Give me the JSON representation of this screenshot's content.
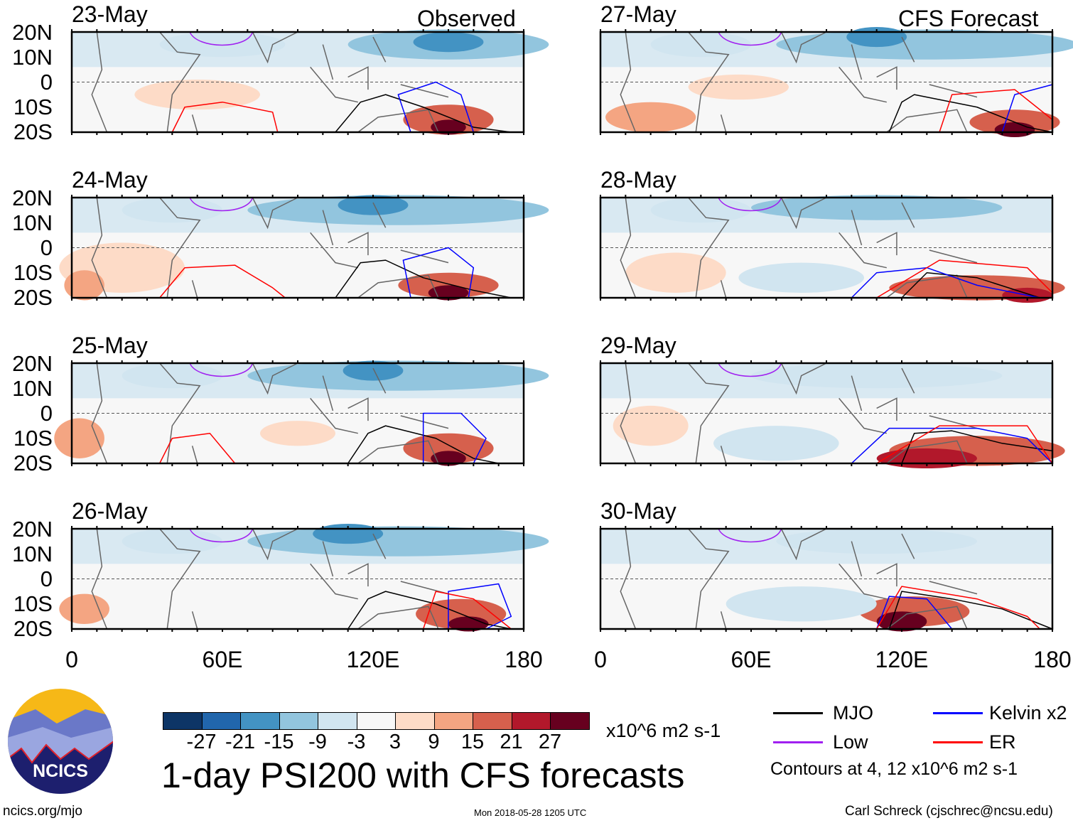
{
  "title": "1-day PSI200 with CFS forecasts",
  "units": "x10^6 m2 s-1",
  "logo_text": "NCICS",
  "footer": {
    "url": "ncics.org/mjo",
    "timestamp": "Mon 2018-05-28 1205 UTC",
    "author": "Carl Schreck (cjschrec@ncsu.edu)"
  },
  "column_labels": {
    "observed": "Observed",
    "forecast": "CFS Forecast"
  },
  "lat_labels": [
    "20N",
    "10N",
    "0",
    "10S",
    "20S"
  ],
  "lon_labels": [
    "0",
    "60E",
    "120E",
    "180"
  ],
  "colorbar": {
    "labels": [
      "-27",
      "-21",
      "-15",
      "-9",
      "-3",
      "3",
      "9",
      "15",
      "21",
      "27"
    ],
    "colors": [
      "#0d3566",
      "#2166ac",
      "#4393c3",
      "#92c5de",
      "#d1e5f0",
      "#f7f7f7",
      "#fddbc7",
      "#f4a582",
      "#d6604d",
      "#b2182b",
      "#67001f"
    ]
  },
  "legend": {
    "items": [
      {
        "label": "MJO",
        "color": "#000000"
      },
      {
        "label": "Kelvin x2",
        "color": "#0000ff"
      },
      {
        "label": "Low",
        "color": "#a020f0"
      },
      {
        "label": "ER",
        "color": "#ff0000"
      }
    ],
    "note": "Contours at 4, 12 x10^6 m2 s-1"
  },
  "chart_data": {
    "type": "heatmap",
    "variable": "PSI200 anomaly",
    "lon_range": [
      0,
      180
    ],
    "lat_range": [
      -20,
      20
    ],
    "panels": [
      {
        "date": "23-May",
        "source": "Observed",
        "fill": [
          [
            150,
            15,
            40,
            6,
            -15
          ],
          [
            150,
            16,
            14,
            4,
            -21
          ],
          [
            60,
            15,
            25,
            5,
            -9
          ],
          [
            150,
            -15,
            18,
            6,
            15
          ],
          [
            150,
            -18,
            7,
            3,
            27
          ],
          [
            50,
            -5,
            25,
            6,
            3
          ]
        ],
        "contours": [
          [
            "#000",
            [
              [
                105,
                -20
              ],
              [
                115,
                -8
              ],
              [
                125,
                -5
              ],
              [
                140,
                -10
              ],
              [
                160,
                -18
              ],
              [
                175,
                -20
              ]
            ]
          ],
          [
            "#00f",
            [
              [
                135,
                -20
              ],
              [
                130,
                -5
              ],
              [
                145,
                0
              ],
              [
                155,
                -5
              ],
              [
                160,
                -20
              ]
            ]
          ],
          [
            "#f00",
            [
              [
                40,
                -20
              ],
              [
                45,
                -10
              ],
              [
                60,
                -8
              ],
              [
                80,
                -12
              ],
              [
                82,
                -20
              ]
            ]
          ]
        ]
      },
      {
        "date": "24-May",
        "source": "Observed",
        "fill": [
          [
            130,
            15,
            60,
            6,
            -15
          ],
          [
            120,
            17,
            14,
            4,
            -21
          ],
          [
            40,
            15,
            20,
            5,
            -9
          ],
          [
            150,
            -15,
            20,
            5,
            15
          ],
          [
            150,
            -18,
            8,
            3,
            27
          ],
          [
            20,
            -8,
            25,
            10,
            3
          ],
          [
            5,
            -15,
            8,
            6,
            9
          ]
        ],
        "contours": [
          [
            "#000",
            [
              [
                105,
                -20
              ],
              [
                115,
                -6
              ],
              [
                125,
                -5
              ],
              [
                140,
                -12
              ],
              [
                160,
                -17
              ],
              [
                175,
                -20
              ]
            ]
          ],
          [
            "#00f",
            [
              [
                135,
                -20
              ],
              [
                132,
                -5
              ],
              [
                150,
                0
              ],
              [
                160,
                -8
              ],
              [
                158,
                -20
              ]
            ]
          ],
          [
            "#f00",
            [
              [
                35,
                -20
              ],
              [
                45,
                -8
              ],
              [
                65,
                -7
              ],
              [
                80,
                -16
              ],
              [
                85,
                -20
              ]
            ]
          ]
        ]
      },
      {
        "date": "25-May",
        "source": "Observed",
        "fill": [
          [
            130,
            15,
            60,
            6,
            -15
          ],
          [
            120,
            17,
            12,
            4,
            -21
          ],
          [
            40,
            15,
            20,
            5,
            -9
          ],
          [
            150,
            -14,
            18,
            6,
            15
          ],
          [
            150,
            -18,
            7,
            3,
            27
          ],
          [
            3,
            -10,
            10,
            8,
            9
          ],
          [
            90,
            -8,
            15,
            5,
            3
          ]
        ],
        "contours": [
          [
            "#000",
            [
              [
                110,
                -20
              ],
              [
                118,
                -8
              ],
              [
                125,
                -5
              ],
              [
                145,
                -10
              ],
              [
                160,
                -18
              ],
              [
                170,
                -20
              ]
            ]
          ],
          [
            "#00f",
            [
              [
                140,
                -20
              ],
              [
                140,
                0
              ],
              [
                155,
                0
              ],
              [
                165,
                -10
              ],
              [
                160,
                -20
              ]
            ]
          ],
          [
            "#f00",
            [
              [
                35,
                -20
              ],
              [
                40,
                -10
              ],
              [
                55,
                -8
              ],
              [
                65,
                -20
              ]
            ]
          ]
        ]
      },
      {
        "date": "26-May",
        "source": "Observed",
        "fill": [
          [
            130,
            15,
            60,
            6,
            -15
          ],
          [
            110,
            18,
            14,
            4,
            -21
          ],
          [
            40,
            15,
            20,
            5,
            -9
          ],
          [
            155,
            -14,
            18,
            6,
            15
          ],
          [
            158,
            -18,
            8,
            3,
            27
          ],
          [
            5,
            -12,
            10,
            6,
            9
          ]
        ],
        "contours": [
          [
            "#000",
            [
              [
                110,
                -20
              ],
              [
                118,
                -8
              ],
              [
                125,
                -5
              ],
              [
                145,
                -10
              ],
              [
                165,
                -18
              ],
              [
                175,
                -20
              ]
            ]
          ],
          [
            "#00f",
            [
              [
                150,
                -20
              ],
              [
                150,
                -5
              ],
              [
                170,
                -2
              ],
              [
                175,
                -15
              ],
              [
                165,
                -20
              ]
            ]
          ],
          [
            "#f00",
            [
              [
                140,
                -20
              ],
              [
                145,
                -5
              ],
              [
                160,
                -8
              ],
              [
                175,
                -20
              ]
            ]
          ]
        ]
      },
      {
        "date": "27-May",
        "source": "CFS Forecast",
        "fill": [
          [
            130,
            15,
            60,
            6,
            -15
          ],
          [
            110,
            18,
            12,
            4,
            -21
          ],
          [
            40,
            15,
            20,
            5,
            -9
          ],
          [
            165,
            -16,
            18,
            5,
            15
          ],
          [
            165,
            -19,
            8,
            3,
            27
          ],
          [
            20,
            -14,
            18,
            6,
            9
          ],
          [
            55,
            -2,
            20,
            5,
            3
          ]
        ],
        "contours": [
          [
            "#000",
            [
              [
                115,
                -20
              ],
              [
                120,
                -8
              ],
              [
                125,
                -5
              ],
              [
                150,
                -10
              ],
              [
                170,
                -18
              ],
              [
                180,
                -20
              ]
            ]
          ],
          [
            "#00f",
            [
              [
                160,
                -20
              ],
              [
                165,
                -5
              ],
              [
                180,
                -1
              ]
            ]
          ],
          [
            "#f00",
            [
              [
                135,
                -20
              ],
              [
                140,
                -5
              ],
              [
                165,
                -3
              ],
              [
                180,
                -15
              ]
            ]
          ]
        ]
      },
      {
        "date": "28-May",
        "source": "CFS Forecast",
        "fill": [
          [
            110,
            16,
            50,
            5,
            -15
          ],
          [
            40,
            15,
            20,
            5,
            -9
          ],
          [
            150,
            -16,
            35,
            5,
            15
          ],
          [
            170,
            -19,
            10,
            3,
            21
          ],
          [
            30,
            -10,
            20,
            8,
            3
          ],
          [
            80,
            -12,
            25,
            6,
            -9
          ]
        ],
        "contours": [
          [
            "#000",
            [
              [
                120,
                -20
              ],
              [
                130,
                -10
              ],
              [
                150,
                -12
              ],
              [
                175,
                -20
              ]
            ]
          ],
          [
            "#00f",
            [
              [
                100,
                -20
              ],
              [
                110,
                -10
              ],
              [
                130,
                -8
              ],
              [
                150,
                -15
              ],
              [
                175,
                -20
              ]
            ]
          ],
          [
            "#f00",
            [
              [
                110,
                -20
              ],
              [
                135,
                -5
              ],
              [
                170,
                -8
              ],
              [
                180,
                -18
              ]
            ]
          ]
        ]
      },
      {
        "date": "29-May",
        "source": "CFS Forecast",
        "fill": [
          [
            110,
            15,
            50,
            5,
            -9
          ],
          [
            150,
            -15,
            35,
            6,
            15
          ],
          [
            130,
            -18,
            20,
            4,
            21
          ],
          [
            20,
            -5,
            15,
            8,
            3
          ],
          [
            70,
            -12,
            25,
            7,
            -9
          ]
        ],
        "contours": [
          [
            "#000",
            [
              [
                120,
                -20
              ],
              [
                125,
                -8
              ],
              [
                140,
                -7
              ],
              [
                160,
                -12
              ],
              [
                180,
                -15
              ]
            ]
          ],
          [
            "#00f",
            [
              [
                100,
                -20
              ],
              [
                115,
                -6
              ],
              [
                150,
                -6
              ],
              [
                170,
                -10
              ],
              [
                180,
                -20
              ]
            ]
          ],
          [
            "#f00",
            [
              [
                110,
                -20
              ],
              [
                135,
                -5
              ],
              [
                170,
                -5
              ],
              [
                180,
                -20
              ]
            ]
          ]
        ]
      },
      {
        "date": "30-May",
        "source": "CFS Forecast",
        "fill": [
          [
            110,
            15,
            40,
            5,
            -9
          ],
          [
            125,
            -13,
            22,
            6,
            15
          ],
          [
            120,
            -17,
            10,
            4,
            27
          ],
          [
            80,
            -10,
            30,
            7,
            -9
          ]
        ],
        "contours": [
          [
            "#000",
            [
              [
                115,
                -20
              ],
              [
                120,
                -5
              ],
              [
                140,
                -8
              ],
              [
                160,
                -12
              ],
              [
                180,
                -20
              ]
            ]
          ],
          [
            "#00f",
            [
              [
                110,
                -20
              ],
              [
                115,
                -7
              ],
              [
                130,
                -8
              ],
              [
                140,
                -20
              ]
            ]
          ],
          [
            "#f00",
            [
              [
                110,
                -20
              ],
              [
                120,
                -3
              ],
              [
                150,
                -8
              ],
              [
                170,
                -15
              ],
              [
                175,
                -20
              ]
            ]
          ]
        ]
      }
    ]
  }
}
